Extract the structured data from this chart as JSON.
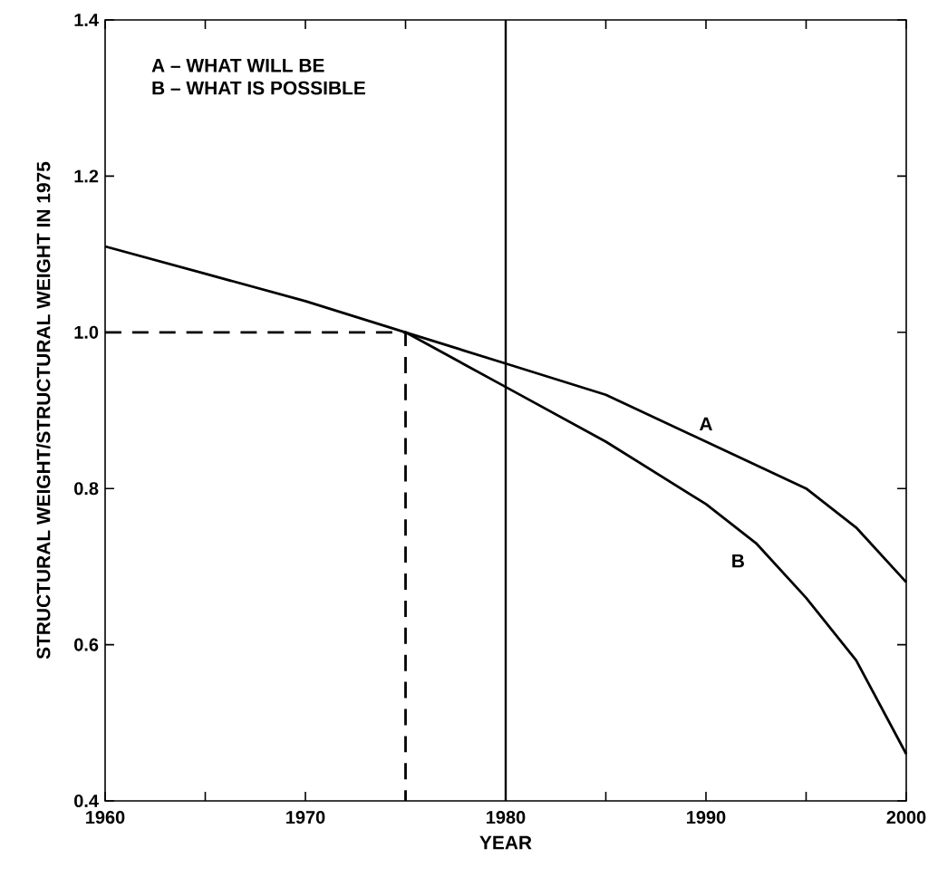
{
  "chart_data": {
    "type": "line",
    "xlabel": "YEAR",
    "ylabel": "STRUCTURAL WEIGHT/STRUCTURAL WEIGHT IN 1975",
    "annotations": [
      "A – WHAT WILL BE",
      "B – WHAT IS POSSIBLE"
    ],
    "xlim": [
      1960,
      2000
    ],
    "ylim": [
      0.4,
      1.4
    ],
    "xticks": [
      1960,
      {
        "value": 1965,
        "label": null
      },
      1970,
      {
        "value": 1975,
        "label": null
      },
      1980,
      {
        "value": 1985,
        "label": null
      },
      1990,
      {
        "value": 1995,
        "label": null
      },
      2000
    ],
    "yticks": [
      0.4,
      0.6,
      0.8,
      {
        "value": 1,
        "label": "1.0"
      },
      1.2,
      1.4
    ],
    "grid": false,
    "marker": "none",
    "ref_lines": [
      {
        "axis": "x",
        "value": 1980,
        "color": "#000000",
        "line_style": "solid"
      }
    ],
    "series": [
      {
        "name": "A",
        "color": "#000000",
        "line_style": "solid",
        "x": [
          1960,
          1965,
          1970,
          1975,
          1980,
          1985,
          1990,
          1995,
          1997.5,
          2000
        ],
        "values": [
          1.11,
          1.075,
          1.04,
          1.0,
          0.96,
          0.92,
          0.86,
          0.8,
          0.75,
          0.68
        ]
      },
      {
        "name": "B",
        "color": "#000000",
        "line_style": "solid",
        "x": [
          1975,
          1980,
          1985,
          1990,
          1992.5,
          1995,
          1997.5,
          2000
        ],
        "values": [
          1.0,
          0.93,
          0.86,
          0.78,
          0.73,
          0.66,
          0.58,
          0.46
        ]
      },
      {
        "color": "#000000",
        "line_style": "dashed",
        "x": [
          1960,
          1975,
          1975
        ],
        "values": [
          1.0,
          1.0,
          0.4
        ]
      }
    ]
  }
}
